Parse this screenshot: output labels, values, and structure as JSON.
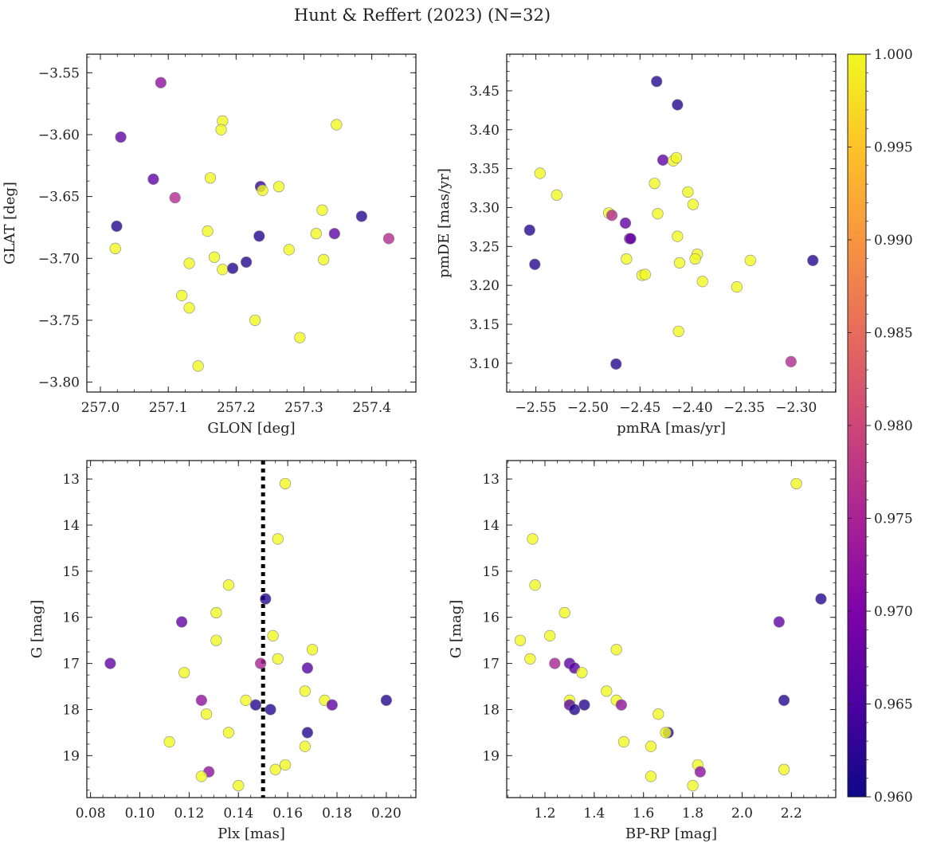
{
  "figure": {
    "title": "Hunt & Reffert (2023) (N=32)"
  },
  "colorbar": {
    "colormap": "plasma",
    "range": [
      0.96,
      1.0
    ],
    "ticks": [
      0.96,
      0.965,
      0.97,
      0.975,
      0.98,
      0.985,
      0.99,
      0.995,
      1.0
    ],
    "tick_labels": [
      "0.960",
      "0.965",
      "0.970",
      "0.975",
      "0.980",
      "0.985",
      "0.990",
      "0.995",
      "1.000"
    ]
  },
  "chart_data": [
    {
      "type": "scatter",
      "id": "glon-glat",
      "xlabel": "GLON [deg]",
      "ylabel": "GLAT [deg]",
      "xlim": [
        256.98,
        257.465
      ],
      "ylim": [
        -3.808,
        -3.535
      ],
      "xticks": [
        257.0,
        257.1,
        257.2,
        257.3,
        257.4
      ],
      "xtick_labels": [
        "257.0",
        "257.1",
        "257.2",
        "257.3",
        "257.4"
      ],
      "yticks": [
        -3.55,
        -3.6,
        -3.65,
        -3.7,
        -3.75,
        -3.8
      ],
      "ytick_labels": [
        "−3.55",
        "−3.60",
        "−3.65",
        "−3.70",
        "−3.75",
        "−3.80"
      ],
      "grid": false,
      "points": [
        {
          "x": 257.089,
          "y": -3.558,
          "p": 0.972
        },
        {
          "x": 257.03,
          "y": -3.602,
          "p": 0.967
        },
        {
          "x": 257.078,
          "y": -3.636,
          "p": 0.967
        },
        {
          "x": 257.11,
          "y": -3.651,
          "p": 0.976
        },
        {
          "x": 257.024,
          "y": -3.674,
          "p": 0.962
        },
        {
          "x": 257.022,
          "y": -3.692,
          "p": 1.0
        },
        {
          "x": 257.18,
          "y": -3.589,
          "p": 1.0
        },
        {
          "x": 257.178,
          "y": -3.596,
          "p": 1.0
        },
        {
          "x": 257.162,
          "y": -3.635,
          "p": 1.0
        },
        {
          "x": 257.236,
          "y": -3.642,
          "p": 0.963
        },
        {
          "x": 257.239,
          "y": -3.645,
          "p": 1.0
        },
        {
          "x": 257.263,
          "y": -3.642,
          "p": 1.0
        },
        {
          "x": 257.348,
          "y": -3.592,
          "p": 1.0
        },
        {
          "x": 257.158,
          "y": -3.678,
          "p": 1.0
        },
        {
          "x": 257.234,
          "y": -3.682,
          "p": 0.962
        },
        {
          "x": 257.327,
          "y": -3.661,
          "p": 1.0
        },
        {
          "x": 257.318,
          "y": -3.68,
          "p": 1.0
        },
        {
          "x": 257.345,
          "y": -3.68,
          "p": 0.967
        },
        {
          "x": 257.385,
          "y": -3.666,
          "p": 0.962
        },
        {
          "x": 257.425,
          "y": -3.684,
          "p": 0.976
        },
        {
          "x": 257.168,
          "y": -3.699,
          "p": 1.0
        },
        {
          "x": 257.131,
          "y": -3.704,
          "p": 1.0
        },
        {
          "x": 257.18,
          "y": -3.709,
          "p": 1.0
        },
        {
          "x": 257.195,
          "y": -3.708,
          "p": 0.962
        },
        {
          "x": 257.215,
          "y": -3.703,
          "p": 0.962
        },
        {
          "x": 257.278,
          "y": -3.693,
          "p": 1.0
        },
        {
          "x": 257.329,
          "y": -3.701,
          "p": 1.0
        },
        {
          "x": 257.12,
          "y": -3.73,
          "p": 1.0
        },
        {
          "x": 257.131,
          "y": -3.74,
          "p": 1.0
        },
        {
          "x": 257.228,
          "y": -3.75,
          "p": 1.0
        },
        {
          "x": 257.294,
          "y": -3.764,
          "p": 1.0
        },
        {
          "x": 257.144,
          "y": -3.787,
          "p": 1.0
        }
      ]
    },
    {
      "type": "scatter",
      "id": "pmra-pmde",
      "xlabel": "pmRA [mas/yr]",
      "ylabel": "pmDE [mas/yr]",
      "xlim": [
        -2.578,
        -2.262
      ],
      "ylim": [
        3.063,
        3.497
      ],
      "xticks": [
        -2.55,
        -2.5,
        -2.45,
        -2.4,
        -2.35,
        -2.3
      ],
      "xtick_labels": [
        "−2.55",
        "−2.50",
        "−2.45",
        "−2.40",
        "−2.35",
        "−2.30"
      ],
      "yticks": [
        3.1,
        3.15,
        3.2,
        3.25,
        3.3,
        3.35,
        3.4,
        3.45
      ],
      "ytick_labels": [
        "3.10",
        "3.15",
        "3.20",
        "3.25",
        "3.30",
        "3.35",
        "3.40",
        "3.45"
      ],
      "grid": false,
      "points": [
        {
          "x": -2.434,
          "y": 3.462,
          "p": 0.962
        },
        {
          "x": -2.414,
          "y": 3.432,
          "p": 0.962
        },
        {
          "x": -2.428,
          "y": 3.361,
          "p": 0.967
        },
        {
          "x": -2.418,
          "y": 3.36,
          "p": 1.0
        },
        {
          "x": -2.415,
          "y": 3.364,
          "p": 1.0
        },
        {
          "x": -2.546,
          "y": 3.344,
          "p": 1.0
        },
        {
          "x": -2.53,
          "y": 3.316,
          "p": 1.0
        },
        {
          "x": -2.436,
          "y": 3.331,
          "p": 1.0
        },
        {
          "x": -2.404,
          "y": 3.32,
          "p": 1.0
        },
        {
          "x": -2.399,
          "y": 3.304,
          "p": 1.0
        },
        {
          "x": -2.48,
          "y": 3.293,
          "p": 1.0
        },
        {
          "x": -2.477,
          "y": 3.29,
          "p": 0.976
        },
        {
          "x": -2.433,
          "y": 3.292,
          "p": 1.0
        },
        {
          "x": -2.556,
          "y": 3.271,
          "p": 0.962
        },
        {
          "x": -2.464,
          "y": 3.28,
          "p": 0.967
        },
        {
          "x": -2.46,
          "y": 3.26,
          "p": 0.972
        },
        {
          "x": -2.459,
          "y": 3.26,
          "p": 0.967
        },
        {
          "x": -2.414,
          "y": 3.263,
          "p": 1.0
        },
        {
          "x": -2.551,
          "y": 3.227,
          "p": 0.962
        },
        {
          "x": -2.463,
          "y": 3.234,
          "p": 1.0
        },
        {
          "x": -2.395,
          "y": 3.24,
          "p": 1.0
        },
        {
          "x": -2.397,
          "y": 3.234,
          "p": 1.0
        },
        {
          "x": -2.412,
          "y": 3.229,
          "p": 1.0
        },
        {
          "x": -2.344,
          "y": 3.232,
          "p": 1.0
        },
        {
          "x": -2.284,
          "y": 3.232,
          "p": 0.962
        },
        {
          "x": -2.448,
          "y": 3.213,
          "p": 1.0
        },
        {
          "x": -2.445,
          "y": 3.214,
          "p": 1.0
        },
        {
          "x": -2.39,
          "y": 3.205,
          "p": 1.0
        },
        {
          "x": -2.357,
          "y": 3.198,
          "p": 1.0
        },
        {
          "x": -2.413,
          "y": 3.141,
          "p": 1.0
        },
        {
          "x": -2.473,
          "y": 3.099,
          "p": 0.962
        },
        {
          "x": -2.305,
          "y": 3.102,
          "p": 0.976
        }
      ]
    },
    {
      "type": "scatter",
      "id": "plx-g",
      "xlabel": "Plx [mas]",
      "ylabel": "G [mag]",
      "xlim": [
        0.0785,
        0.212
      ],
      "ylim": [
        19.91,
        12.6
      ],
      "y_inverted": true,
      "xticks": [
        0.08,
        0.1,
        0.12,
        0.14,
        0.16,
        0.18,
        0.2
      ],
      "xtick_labels": [
        "0.08",
        "0.10",
        "0.12",
        "0.14",
        "0.16",
        "0.18",
        "0.20"
      ],
      "yticks": [
        13,
        14,
        15,
        16,
        17,
        18,
        19
      ],
      "ytick_labels": [
        "13",
        "14",
        "15",
        "16",
        "17",
        "18",
        "19"
      ],
      "grid": false,
      "vline": {
        "x": 0.15,
        "style": "dotted"
      },
      "points": [
        {
          "x": 0.159,
          "y": 13.1,
          "p": 1.0
        },
        {
          "x": 0.156,
          "y": 14.3,
          "p": 1.0
        },
        {
          "x": 0.136,
          "y": 15.3,
          "p": 1.0
        },
        {
          "x": 0.151,
          "y": 15.6,
          "p": 0.962
        },
        {
          "x": 0.131,
          "y": 15.9,
          "p": 1.0
        },
        {
          "x": 0.117,
          "y": 16.1,
          "p": 0.967
        },
        {
          "x": 0.154,
          "y": 16.4,
          "p": 1.0
        },
        {
          "x": 0.131,
          "y": 16.5,
          "p": 1.0
        },
        {
          "x": 0.17,
          "y": 16.7,
          "p": 1.0
        },
        {
          "x": 0.156,
          "y": 16.9,
          "p": 1.0
        },
        {
          "x": 0.088,
          "y": 17.0,
          "p": 0.967
        },
        {
          "x": 0.149,
          "y": 17.0,
          "p": 0.975
        },
        {
          "x": 0.168,
          "y": 17.1,
          "p": 0.966
        },
        {
          "x": 0.118,
          "y": 17.2,
          "p": 1.0
        },
        {
          "x": 0.167,
          "y": 17.6,
          "p": 1.0
        },
        {
          "x": 0.143,
          "y": 17.8,
          "p": 1.0
        },
        {
          "x": 0.175,
          "y": 17.8,
          "p": 1.0
        },
        {
          "x": 0.125,
          "y": 17.8,
          "p": 0.972
        },
        {
          "x": 0.178,
          "y": 17.9,
          "p": 0.967
        },
        {
          "x": 0.147,
          "y": 17.9,
          "p": 0.962
        },
        {
          "x": 0.2,
          "y": 17.8,
          "p": 0.962
        },
        {
          "x": 0.153,
          "y": 18.0,
          "p": 0.962
        },
        {
          "x": 0.127,
          "y": 18.1,
          "p": 1.0
        },
        {
          "x": 0.136,
          "y": 18.5,
          "p": 1.0
        },
        {
          "x": 0.168,
          "y": 18.5,
          "p": 0.962
        },
        {
          "x": 0.112,
          "y": 18.7,
          "p": 1.0
        },
        {
          "x": 0.167,
          "y": 18.8,
          "p": 1.0
        },
        {
          "x": 0.159,
          "y": 19.2,
          "p": 1.0
        },
        {
          "x": 0.155,
          "y": 19.3,
          "p": 1.0
        },
        {
          "x": 0.128,
          "y": 19.35,
          "p": 0.972
        },
        {
          "x": 0.125,
          "y": 19.45,
          "p": 1.0
        },
        {
          "x": 0.14,
          "y": 19.65,
          "p": 1.0
        }
      ]
    },
    {
      "type": "scatter",
      "id": "bprp-g",
      "xlabel": "BP-RP [mag]",
      "ylabel": "G [mag]",
      "xlim": [
        1.045,
        2.38
      ],
      "ylim": [
        19.91,
        12.6
      ],
      "y_inverted": true,
      "xticks": [
        1.2,
        1.4,
        1.6,
        1.8,
        2.0,
        2.2
      ],
      "xtick_labels": [
        "1.2",
        "1.4",
        "1.6",
        "1.8",
        "2.0",
        "2.2"
      ],
      "yticks": [
        13,
        14,
        15,
        16,
        17,
        18,
        19
      ],
      "ytick_labels": [
        "13",
        "14",
        "15",
        "16",
        "17",
        "18",
        "19"
      ],
      "grid": false,
      "points": [
        {
          "x": 2.22,
          "y": 13.1,
          "p": 1.0
        },
        {
          "x": 1.15,
          "y": 14.3,
          "p": 1.0
        },
        {
          "x": 1.16,
          "y": 15.3,
          "p": 1.0
        },
        {
          "x": 2.32,
          "y": 15.6,
          "p": 0.962
        },
        {
          "x": 1.28,
          "y": 15.9,
          "p": 1.0
        },
        {
          "x": 2.15,
          "y": 16.1,
          "p": 0.967
        },
        {
          "x": 1.22,
          "y": 16.4,
          "p": 1.0
        },
        {
          "x": 1.1,
          "y": 16.5,
          "p": 1.0
        },
        {
          "x": 1.49,
          "y": 16.7,
          "p": 1.0
        },
        {
          "x": 1.14,
          "y": 16.9,
          "p": 1.0
        },
        {
          "x": 1.24,
          "y": 17.0,
          "p": 0.975
        },
        {
          "x": 1.3,
          "y": 17.0,
          "p": 0.967
        },
        {
          "x": 1.32,
          "y": 17.1,
          "p": 0.966
        },
        {
          "x": 1.35,
          "y": 17.2,
          "p": 1.0
        },
        {
          "x": 1.45,
          "y": 17.6,
          "p": 1.0
        },
        {
          "x": 1.3,
          "y": 17.8,
          "p": 1.0
        },
        {
          "x": 1.49,
          "y": 17.8,
          "p": 1.0
        },
        {
          "x": 2.17,
          "y": 17.8,
          "p": 0.962
        },
        {
          "x": 1.3,
          "y": 17.9,
          "p": 0.967
        },
        {
          "x": 1.51,
          "y": 17.9,
          "p": 0.972
        },
        {
          "x": 1.36,
          "y": 17.9,
          "p": 0.962
        },
        {
          "x": 1.32,
          "y": 18.0,
          "p": 0.962
        },
        {
          "x": 1.66,
          "y": 18.1,
          "p": 1.0
        },
        {
          "x": 1.7,
          "y": 18.5,
          "p": 0.962
        },
        {
          "x": 1.69,
          "y": 18.5,
          "p": 1.0
        },
        {
          "x": 1.52,
          "y": 18.7,
          "p": 1.0
        },
        {
          "x": 1.63,
          "y": 18.8,
          "p": 1.0
        },
        {
          "x": 1.82,
          "y": 19.2,
          "p": 1.0
        },
        {
          "x": 1.83,
          "y": 19.35,
          "p": 0.972
        },
        {
          "x": 2.17,
          "y": 19.3,
          "p": 1.0
        },
        {
          "x": 1.63,
          "y": 19.45,
          "p": 1.0
        },
        {
          "x": 1.8,
          "y": 19.65,
          "p": 1.0
        }
      ]
    }
  ]
}
